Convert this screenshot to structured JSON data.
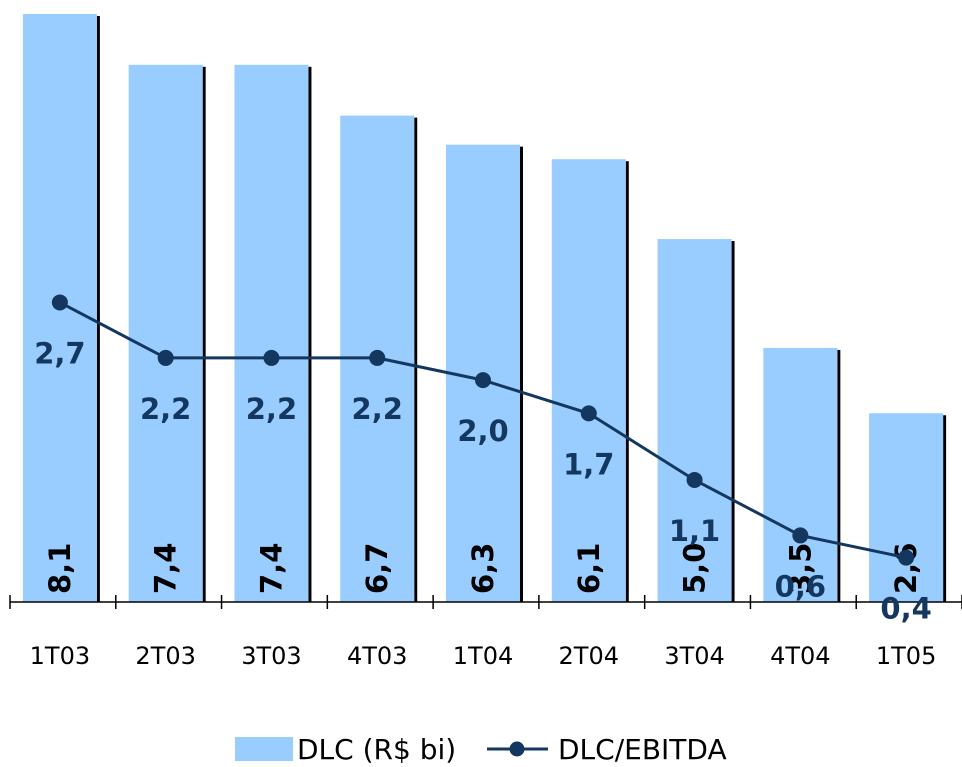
{
  "chart_data": {
    "type": "bar",
    "categories": [
      "1T03",
      "2T03",
      "3T03",
      "4T03",
      "1T04",
      "2T04",
      "3T04",
      "4T04",
      "1T05"
    ],
    "series": [
      {
        "name": "DLC (R$ bi)",
        "type": "bar",
        "color": "#99CCFF",
        "values": [
          8.1,
          7.4,
          7.4,
          6.7,
          6.3,
          6.1,
          5.0,
          3.5,
          2.6
        ],
        "labels": [
          "8,1",
          "7,4",
          "7,4",
          "6,7",
          "6,3",
          "6,1",
          "5,0",
          "3,5",
          "2,6"
        ]
      },
      {
        "name": "DLC/EBITDA",
        "type": "line",
        "color": "#14375F",
        "values": [
          2.7,
          2.2,
          2.2,
          2.2,
          2.0,
          1.7,
          1.1,
          0.6,
          0.4
        ],
        "labels": [
          "2,7",
          "2,2",
          "2,2",
          "2,2",
          "2,0",
          "1,7",
          "1,1",
          "0,6",
          "0,4"
        ]
      }
    ],
    "title": "",
    "xlabel": "",
    "ylabel": "",
    "bar_ylim": [
      0,
      8.1
    ],
    "line_ylim": [
      0,
      5.3
    ],
    "grid": false,
    "legend_position": "bottom"
  }
}
